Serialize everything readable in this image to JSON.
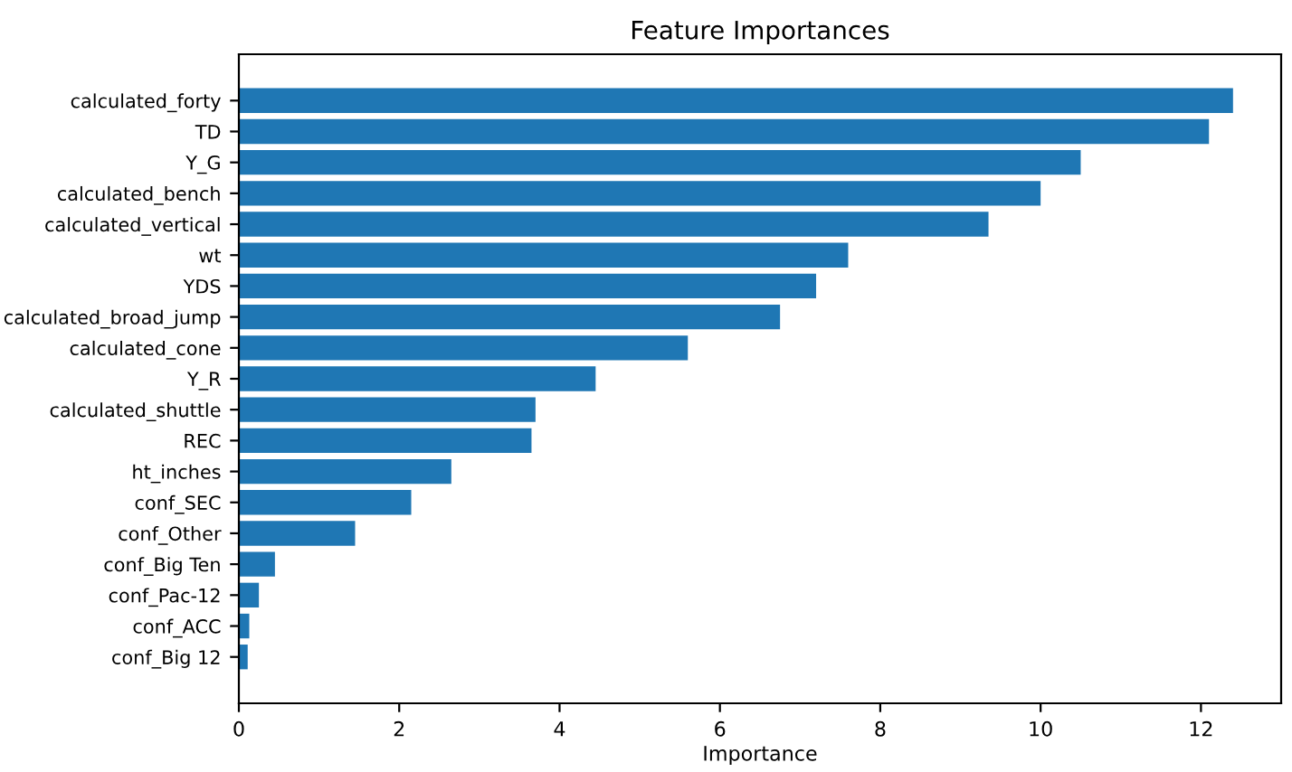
{
  "chart_data": {
    "type": "bar",
    "orientation": "horizontal",
    "title": "Feature Importances",
    "xlabel": "Importance",
    "categories": [
      "calculated_forty",
      "TD",
      "Y_G",
      "calculated_bench",
      "calculated_vertical",
      "wt",
      "YDS",
      "calculated_broad_jump",
      "calculated_cone",
      "Y_R",
      "calculated_shuttle",
      "REC",
      "ht_inches",
      "conf_SEC",
      "conf_Other",
      "conf_Big Ten",
      "conf_Pac-12",
      "conf_ACC",
      "conf_Big 12"
    ],
    "values": [
      12.4,
      12.1,
      10.5,
      10.0,
      9.35,
      7.6,
      7.2,
      6.75,
      5.6,
      4.45,
      3.7,
      3.65,
      2.65,
      2.15,
      1.45,
      0.45,
      0.25,
      0.13,
      0.11
    ],
    "color": "#1f77b4",
    "xlim": [
      0,
      13
    ],
    "xticks": [
      0,
      2,
      4,
      6,
      8,
      10,
      12
    ],
    "grid": false
  }
}
